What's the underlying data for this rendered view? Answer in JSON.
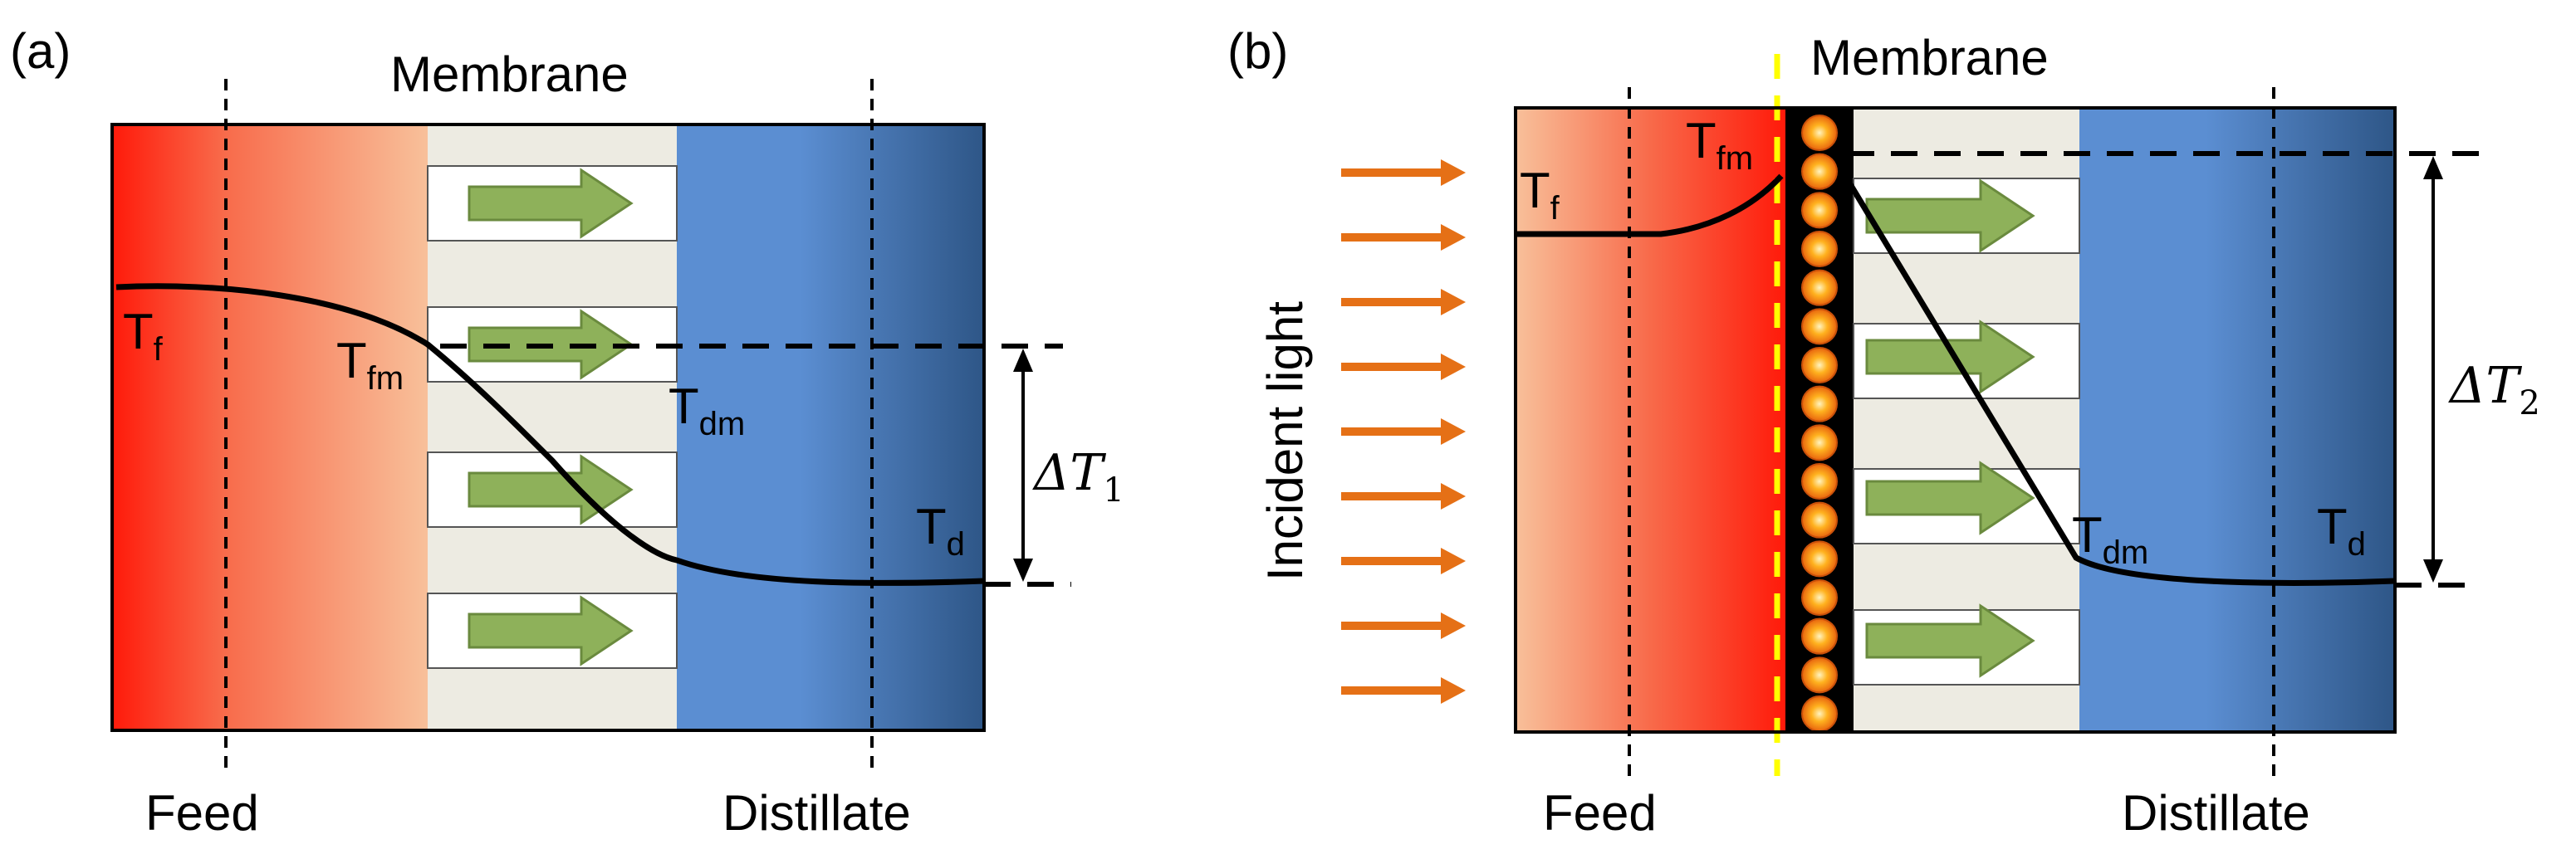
{
  "panel_a": {
    "tag": "(a)",
    "membrane_label": "Membrane",
    "feed_label": "Feed",
    "distillate_label": "Distillate",
    "t_f": {
      "base": "T",
      "sub": "f"
    },
    "t_fm": {
      "base": "T",
      "sub": "fm"
    },
    "t_dm": {
      "base": "T",
      "sub": "dm"
    },
    "t_d": {
      "base": "T",
      "sub": "d"
    },
    "delta": {
      "base": "ΔT",
      "sub": "1"
    }
  },
  "panel_b": {
    "tag": "(b)",
    "membrane_label": "Membrane",
    "feed_label": "Feed",
    "distillate_label": "Distillate",
    "incident_label": "Incident light",
    "t_f": {
      "base": "T",
      "sub": "f"
    },
    "t_fm": {
      "base": "T",
      "sub": "fm"
    },
    "t_dm": {
      "base": "T",
      "sub": "dm"
    },
    "t_d": {
      "base": "T",
      "sub": "d"
    },
    "delta": {
      "base": "ΔT",
      "sub": "2"
    }
  },
  "colors": {
    "feed_hot": "#ff1a0a",
    "feed_warm": "#f6b98e",
    "membrane_bg": "#edebe2",
    "distillate_light": "#5b8ed2",
    "distillate_dark": "#2e5687",
    "flow_arrow": "#8eb15a",
    "light_arrow": "#e57016",
    "photothermal_dash": "#ffff00"
  }
}
